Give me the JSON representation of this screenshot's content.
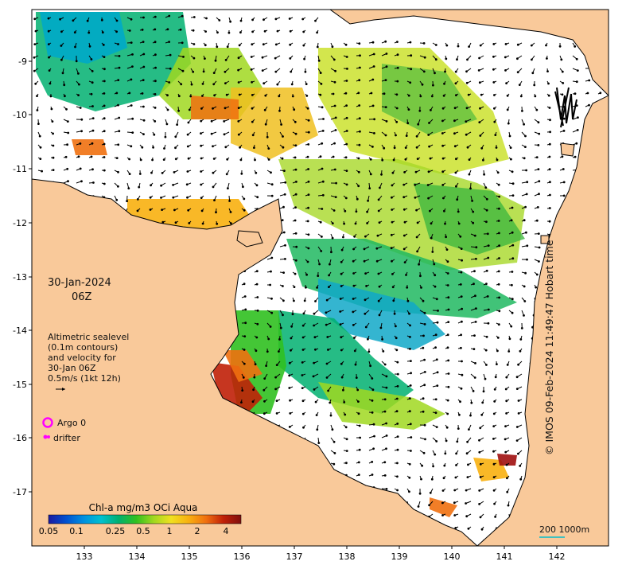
{
  "map": {
    "date_label": "30-Jan-2024",
    "time_label": "06Z",
    "annotation": {
      "lines": [
        "Altimetric sealevel",
        "(0.1m contours)",
        "and velocity for",
        "30-Jan 06Z",
        "0.5m/s (1kt 12h)"
      ]
    },
    "legend": {
      "argo_label": "Argo 0",
      "drifter_label": "drifter",
      "argo_color": "#ff00ff",
      "drifter_color": "#ff00ff"
    },
    "colorbar": {
      "title": "Chl-a mg/m3 OCi Aqua",
      "ticks": [
        "0.05",
        "0.1",
        "0.25",
        "0.5",
        "1",
        "2",
        "4"
      ],
      "colors": [
        "#1a1aa0",
        "#0050d0",
        "#0090e0",
        "#00c0d0",
        "#00b070",
        "#30c020",
        "#a0d820",
        "#f0e020",
        "#f8b010",
        "#f07010",
        "#c02008",
        "#801010"
      ]
    },
    "scale_label": "200  1000m",
    "credit": "© IMOS 09-Feb-2024 11:49:47 Hobart time",
    "x_ticks": [
      "133",
      "134",
      "135",
      "136",
      "137",
      "138",
      "139",
      "140",
      "141",
      "142"
    ],
    "y_ticks": [
      "-9",
      "-10",
      "-11",
      "-12",
      "-13",
      "-14",
      "-15",
      "-16",
      "-17"
    ],
    "colors": {
      "land": "#f9c99a",
      "ocean": "#ffffff",
      "coast": "#000000"
    }
  }
}
